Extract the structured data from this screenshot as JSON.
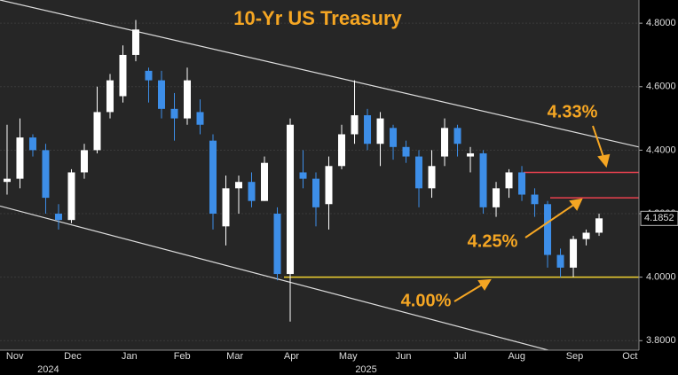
{
  "chart_data": {
    "type": "candlestick",
    "title": "10-Yr US Treasury",
    "open": [
      4.3,
      4.31,
      4.44,
      4.4,
      4.2,
      4.18,
      4.33,
      4.4,
      4.52,
      4.57,
      4.7,
      4.65,
      4.62,
      4.53,
      4.5,
      4.52,
      4.43,
      4.16,
      4.28,
      4.3,
      4.24,
      4.2,
      4.01,
      4.33,
      4.31,
      4.23,
      4.35,
      4.45,
      4.51,
      4.42,
      4.47,
      4.41,
      4.38,
      4.28,
      4.38,
      4.47,
      4.38,
      4.39,
      4.22,
      4.28,
      4.33,
      4.26,
      4.23,
      4.07,
      4.03,
      4.12,
      4.14
    ],
    "high": [
      4.48,
      4.5,
      4.45,
      4.42,
      4.23,
      4.34,
      4.42,
      4.6,
      4.64,
      4.73,
      4.81,
      4.66,
      4.65,
      4.58,
      4.66,
      4.56,
      4.45,
      4.32,
      4.32,
      4.33,
      4.38,
      4.22,
      4.5,
      4.4,
      4.33,
      4.38,
      4.48,
      4.62,
      4.53,
      4.52,
      4.48,
      4.43,
      4.4,
      4.4,
      4.5,
      4.48,
      4.41,
      4.4,
      4.3,
      4.34,
      4.35,
      4.28,
      4.24,
      4.09,
      4.13,
      4.15,
      4.2
    ],
    "low": [
      4.26,
      4.28,
      4.38,
      4.2,
      4.15,
      4.17,
      4.31,
      4.39,
      4.5,
      4.55,
      4.68,
      4.55,
      4.5,
      4.43,
      4.48,
      4.45,
      4.15,
      4.1,
      4.2,
      4.22,
      4.24,
      3.99,
      3.86,
      4.28,
      4.16,
      4.15,
      4.34,
      4.42,
      4.4,
      4.35,
      4.37,
      4.36,
      4.22,
      4.25,
      4.35,
      4.38,
      4.33,
      4.2,
      4.19,
      4.25,
      4.24,
      4.19,
      4.03,
      4.0,
      4.0,
      4.1,
      4.13
    ],
    "close": [
      4.31,
      4.44,
      4.4,
      4.25,
      4.18,
      4.33,
      4.4,
      4.52,
      4.62,
      4.7,
      4.78,
      4.62,
      4.53,
      4.5,
      4.62,
      4.48,
      4.2,
      4.28,
      4.3,
      4.24,
      4.36,
      4.01,
      4.48,
      4.31,
      4.22,
      4.35,
      4.45,
      4.51,
      4.42,
      4.5,
      4.41,
      4.38,
      4.28,
      4.35,
      4.47,
      4.42,
      4.39,
      4.22,
      4.28,
      4.33,
      4.26,
      4.23,
      4.07,
      4.03,
      4.12,
      4.14,
      4.1852
    ],
    "up_color": "#ffffff",
    "down_color": "#3d8ee8",
    "last_price": 4.1852,
    "ylim": [
      3.77,
      4.873
    ],
    "yticks": [
      {
        "value": 3.8,
        "label": "3.8000"
      },
      {
        "value": 4.0,
        "label": "4.0000"
      },
      {
        "value": 4.2,
        "label": "4.2000"
      },
      {
        "value": 4.4,
        "label": "4.4000"
      },
      {
        "value": 4.6,
        "label": "4.6000"
      },
      {
        "value": 4.8,
        "label": "4.8000"
      }
    ],
    "xlim": [
      -0.55,
      49.1
    ],
    "xticks": [
      {
        "value": 0.6,
        "label": "Nov"
      },
      {
        "value": 5.1,
        "label": "Dec"
      },
      {
        "value": 9.5,
        "label": "Jan"
      },
      {
        "value": 13.6,
        "label": "Feb"
      },
      {
        "value": 17.7,
        "label": "Mar"
      },
      {
        "value": 22.1,
        "label": "Apr"
      },
      {
        "value": 26.5,
        "label": "May"
      },
      {
        "value": 30.8,
        "label": "Jun"
      },
      {
        "value": 35.2,
        "label": "Jul"
      },
      {
        "value": 39.6,
        "label": "Aug"
      },
      {
        "value": 44.1,
        "label": "Sep"
      },
      {
        "value": 48.4,
        "label": "Oct"
      }
    ],
    "year_ticks": [
      {
        "value": 3.2,
        "label": "2024"
      },
      {
        "value": 27.9,
        "label": "2025"
      }
    ],
    "trendlines": [
      {
        "from": 4.873,
        "to": 4.41,
        "color": "#dddddd"
      },
      {
        "from": 4.224,
        "to": 3.695,
        "color": "#dddddd"
      }
    ],
    "levels": [
      {
        "value": 4.33,
        "label": "4.33%",
        "color": "#e8414e"
      },
      {
        "value": 4.25,
        "label": "4.25%",
        "color": "#e8414e"
      },
      {
        "value": 4.0,
        "label": "4.00%",
        "color": "#f2d230"
      }
    ]
  }
}
